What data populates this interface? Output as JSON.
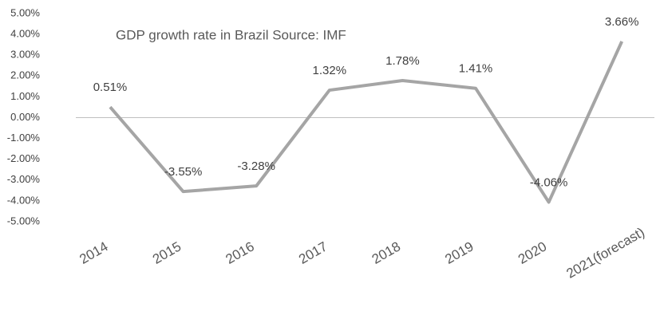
{
  "chart_data": {
    "type": "line",
    "title": "GDP growth rate in Brazil  Source: IMF",
    "categories": [
      "2014",
      "2015",
      "2016",
      "2017",
      "2018",
      "2019",
      "2020",
      "2021(forecast)"
    ],
    "values": [
      0.51,
      -3.55,
      -3.28,
      1.32,
      1.78,
      1.41,
      -4.06,
      3.66
    ],
    "value_labels": [
      "0.51%",
      "-3.55%",
      "-3.28%",
      "1.32%",
      "1.78%",
      "1.41%",
      "-4.06%",
      "3.66%"
    ],
    "color": "#a5a5a5",
    "ylim": [
      -5,
      5
    ],
    "yticks": [
      {
        "value": 5,
        "label": "5.00%"
      },
      {
        "value": 4,
        "label": "4.00%"
      },
      {
        "value": 3,
        "label": "3.00%"
      },
      {
        "value": 2,
        "label": "2.00%"
      },
      {
        "value": 1,
        "label": "1.00%"
      },
      {
        "value": 0,
        "label": "0.00%"
      },
      {
        "value": -1,
        "label": "-1.00%"
      },
      {
        "value": -2,
        "label": "-2.00%"
      },
      {
        "value": -3,
        "label": "-3.00%"
      },
      {
        "value": -4,
        "label": "-4.00%"
      },
      {
        "value": -5,
        "label": "-5.00%"
      }
    ],
    "grid": false
  }
}
